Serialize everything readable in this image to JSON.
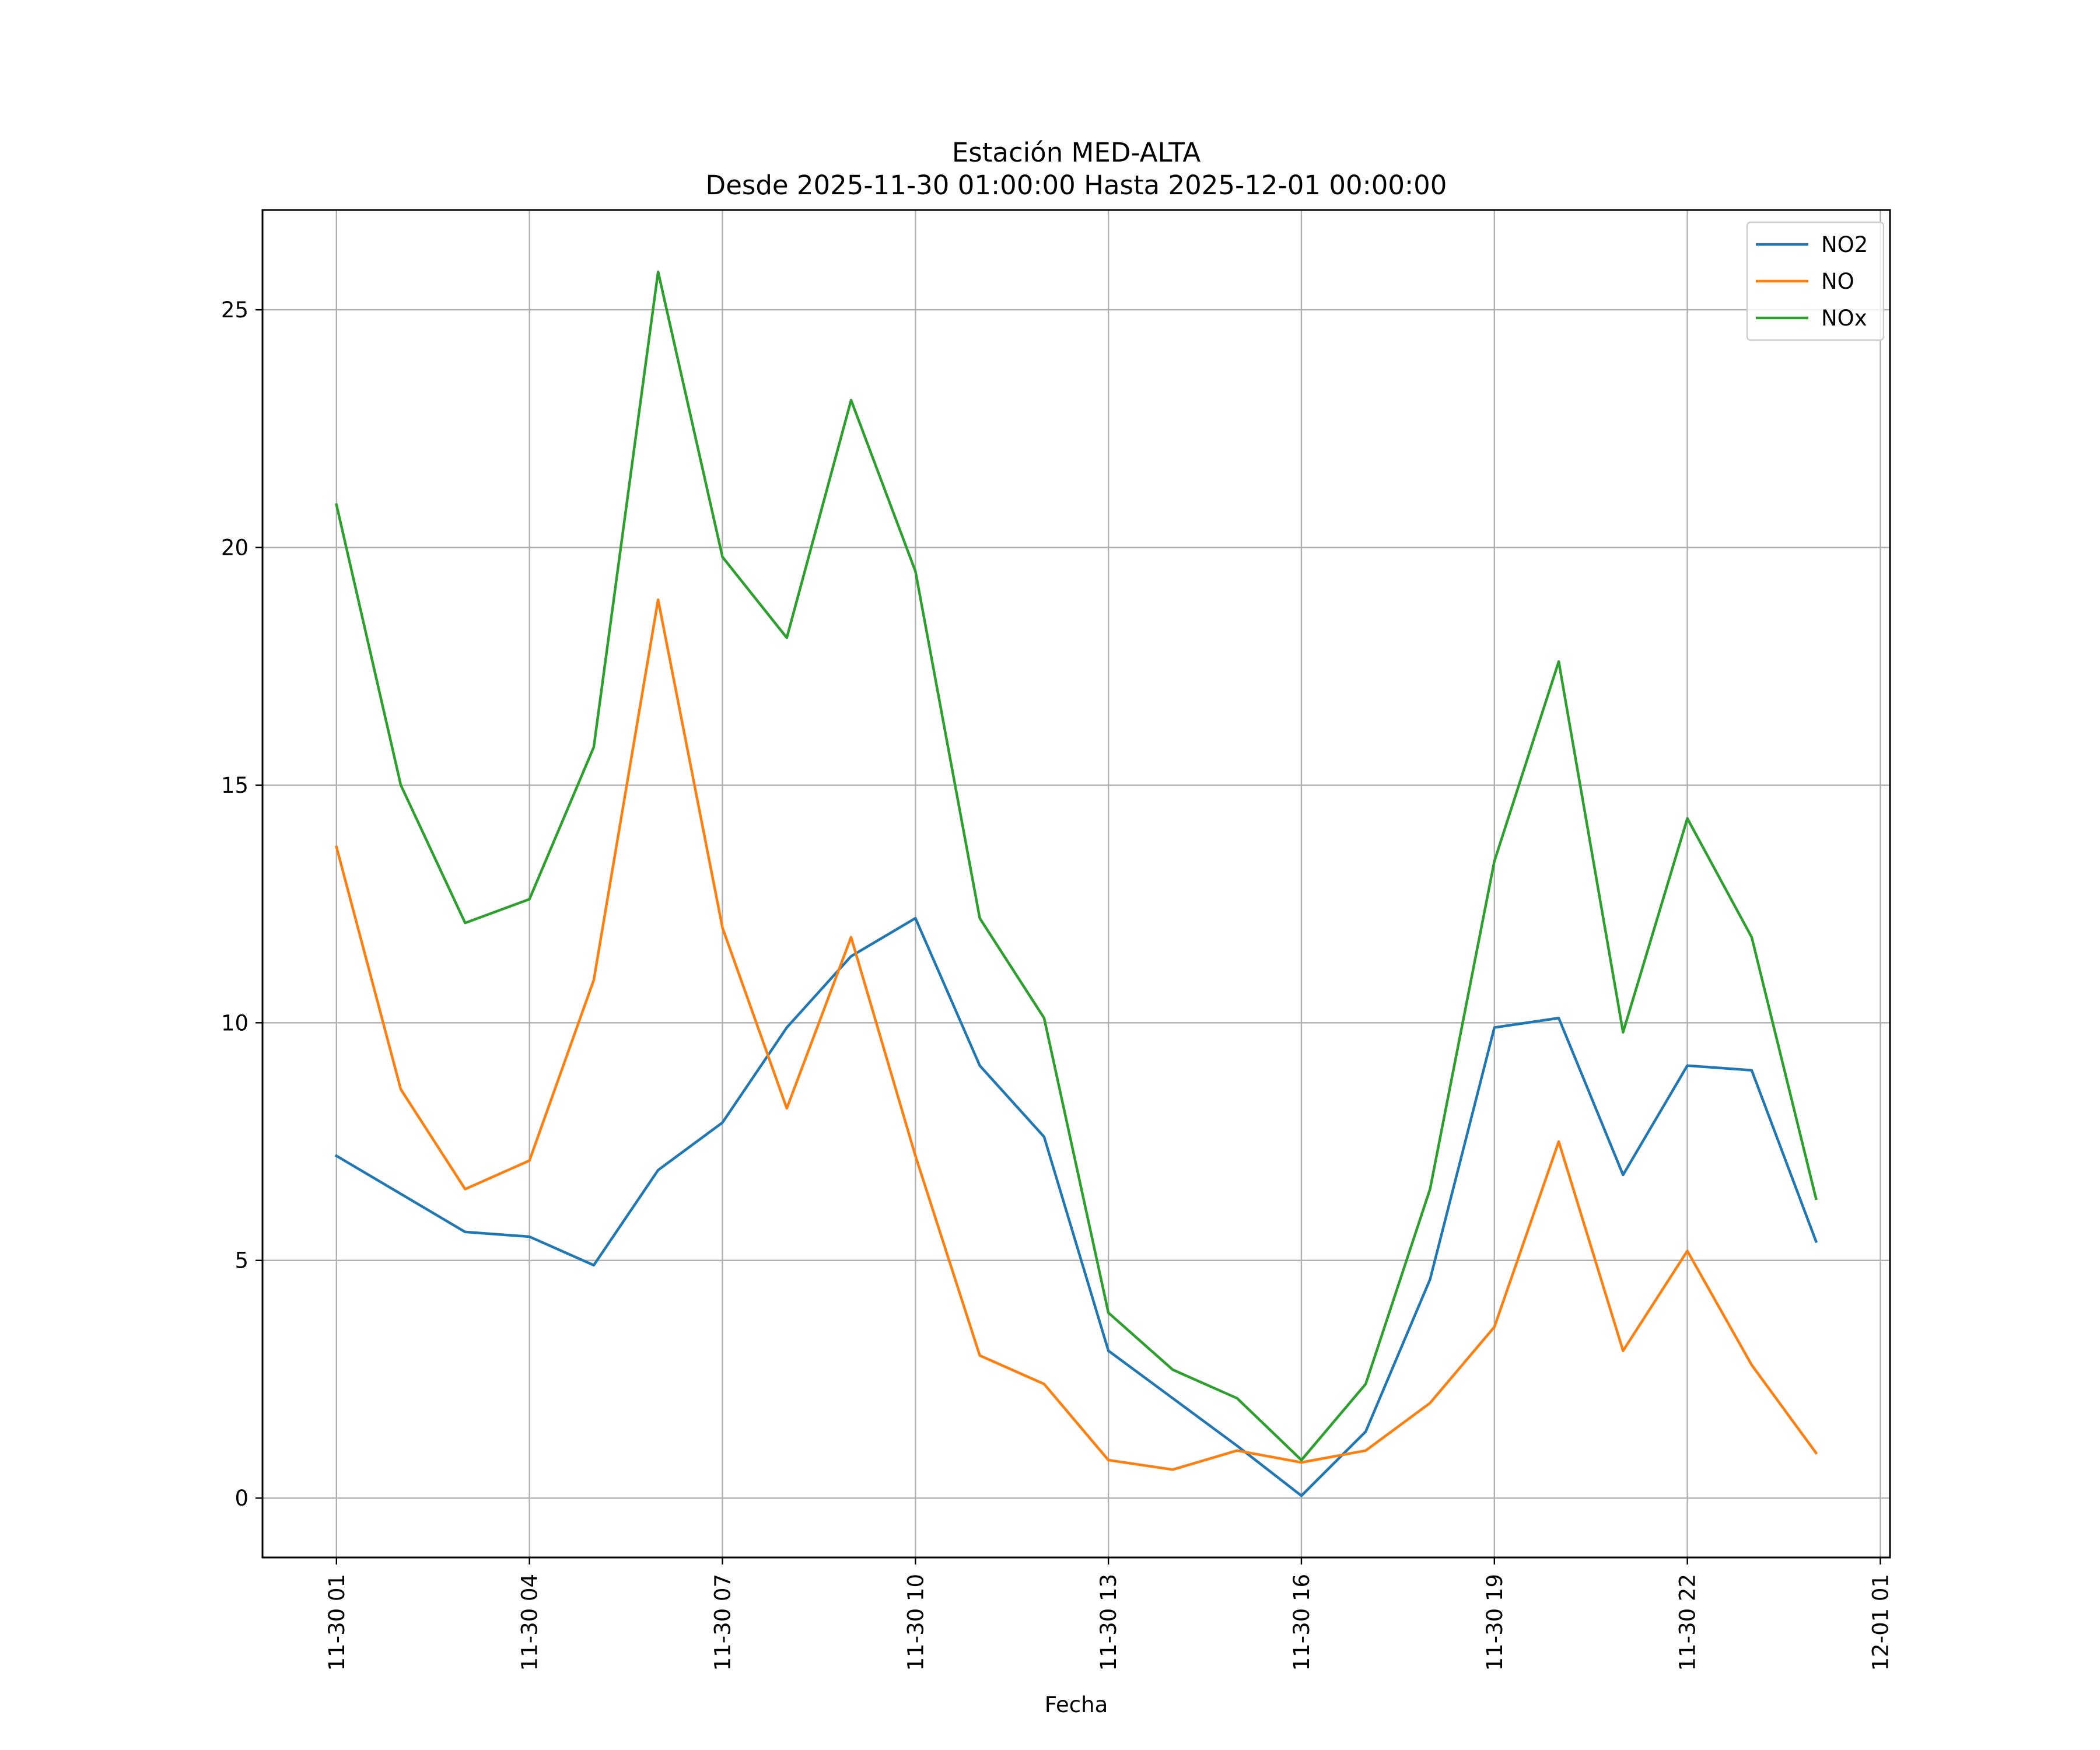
{
  "chart_data": {
    "type": "line",
    "title": "Estación MED-ALTA",
    "subtitle": "Desde 2025-11-30 01:00:00 Hasta 2025-12-01 00:00:00",
    "xlabel": "Fecha",
    "ylabel": "",
    "x": [
      "2025-11-30 01:00",
      "2025-11-30 02:00",
      "2025-11-30 03:00",
      "2025-11-30 04:00",
      "2025-11-30 05:00",
      "2025-11-30 06:00",
      "2025-11-30 07:00",
      "2025-11-30 08:00",
      "2025-11-30 09:00",
      "2025-11-30 10:00",
      "2025-11-30 11:00",
      "2025-11-30 12:00",
      "2025-11-30 13:00",
      "2025-11-30 14:00",
      "2025-11-30 15:00",
      "2025-11-30 16:00",
      "2025-11-30 17:00",
      "2025-11-30 18:00",
      "2025-11-30 19:00",
      "2025-11-30 20:00",
      "2025-11-30 21:00",
      "2025-11-30 22:00",
      "2025-11-30 23:00",
      "2025-12-01 00:00"
    ],
    "xticks": [
      "11-30 01",
      "11-30 04",
      "11-30 07",
      "11-30 10",
      "11-30 13",
      "11-30 16",
      "11-30 19",
      "11-30 22",
      "12-01 01"
    ],
    "xtick_dates": [
      "2025-11-30 01:00",
      "2025-11-30 04:00",
      "2025-11-30 07:00",
      "2025-11-30 10:00",
      "2025-11-30 13:00",
      "2025-11-30 16:00",
      "2025-11-30 19:00",
      "2025-11-30 22:00",
      "2025-12-01 01:00"
    ],
    "xlim": [
      "2025-11-29 23:51",
      "2025-12-01 01:09"
    ],
    "ylim": [
      -1.25,
      27.1
    ],
    "yticks": [
      0,
      5,
      10,
      15,
      20,
      25
    ],
    "grid": true,
    "legend_position": "top-right",
    "series": [
      {
        "name": "NO2",
        "color": "#1f77b4",
        "values": [
          7.2,
          6.4,
          5.6,
          5.5,
          4.9,
          6.9,
          7.9,
          9.9,
          11.4,
          12.2,
          9.1,
          7.6,
          3.1,
          2.1,
          1.1,
          0.05,
          1.4,
          4.6,
          9.9,
          10.1,
          6.8,
          9.1,
          9.0,
          5.4
        ]
      },
      {
        "name": "NO",
        "color": "#ff7f0e",
        "values": [
          13.7,
          8.6,
          6.5,
          7.1,
          10.9,
          18.9,
          12.0,
          8.2,
          11.8,
          7.2,
          3.0,
          2.4,
          0.8,
          0.6,
          1.0,
          0.75,
          1.0,
          2.0,
          3.6,
          7.5,
          3.1,
          5.2,
          2.8,
          0.95
        ]
      },
      {
        "name": "NOx",
        "color": "#2ca02c",
        "values": [
          20.9,
          15.0,
          12.1,
          12.6,
          15.8,
          25.8,
          19.8,
          18.1,
          23.1,
          19.5,
          12.2,
          10.1,
          3.9,
          2.7,
          2.1,
          0.8,
          2.4,
          6.5,
          13.4,
          17.6,
          9.8,
          14.3,
          11.8,
          6.3
        ]
      }
    ]
  }
}
